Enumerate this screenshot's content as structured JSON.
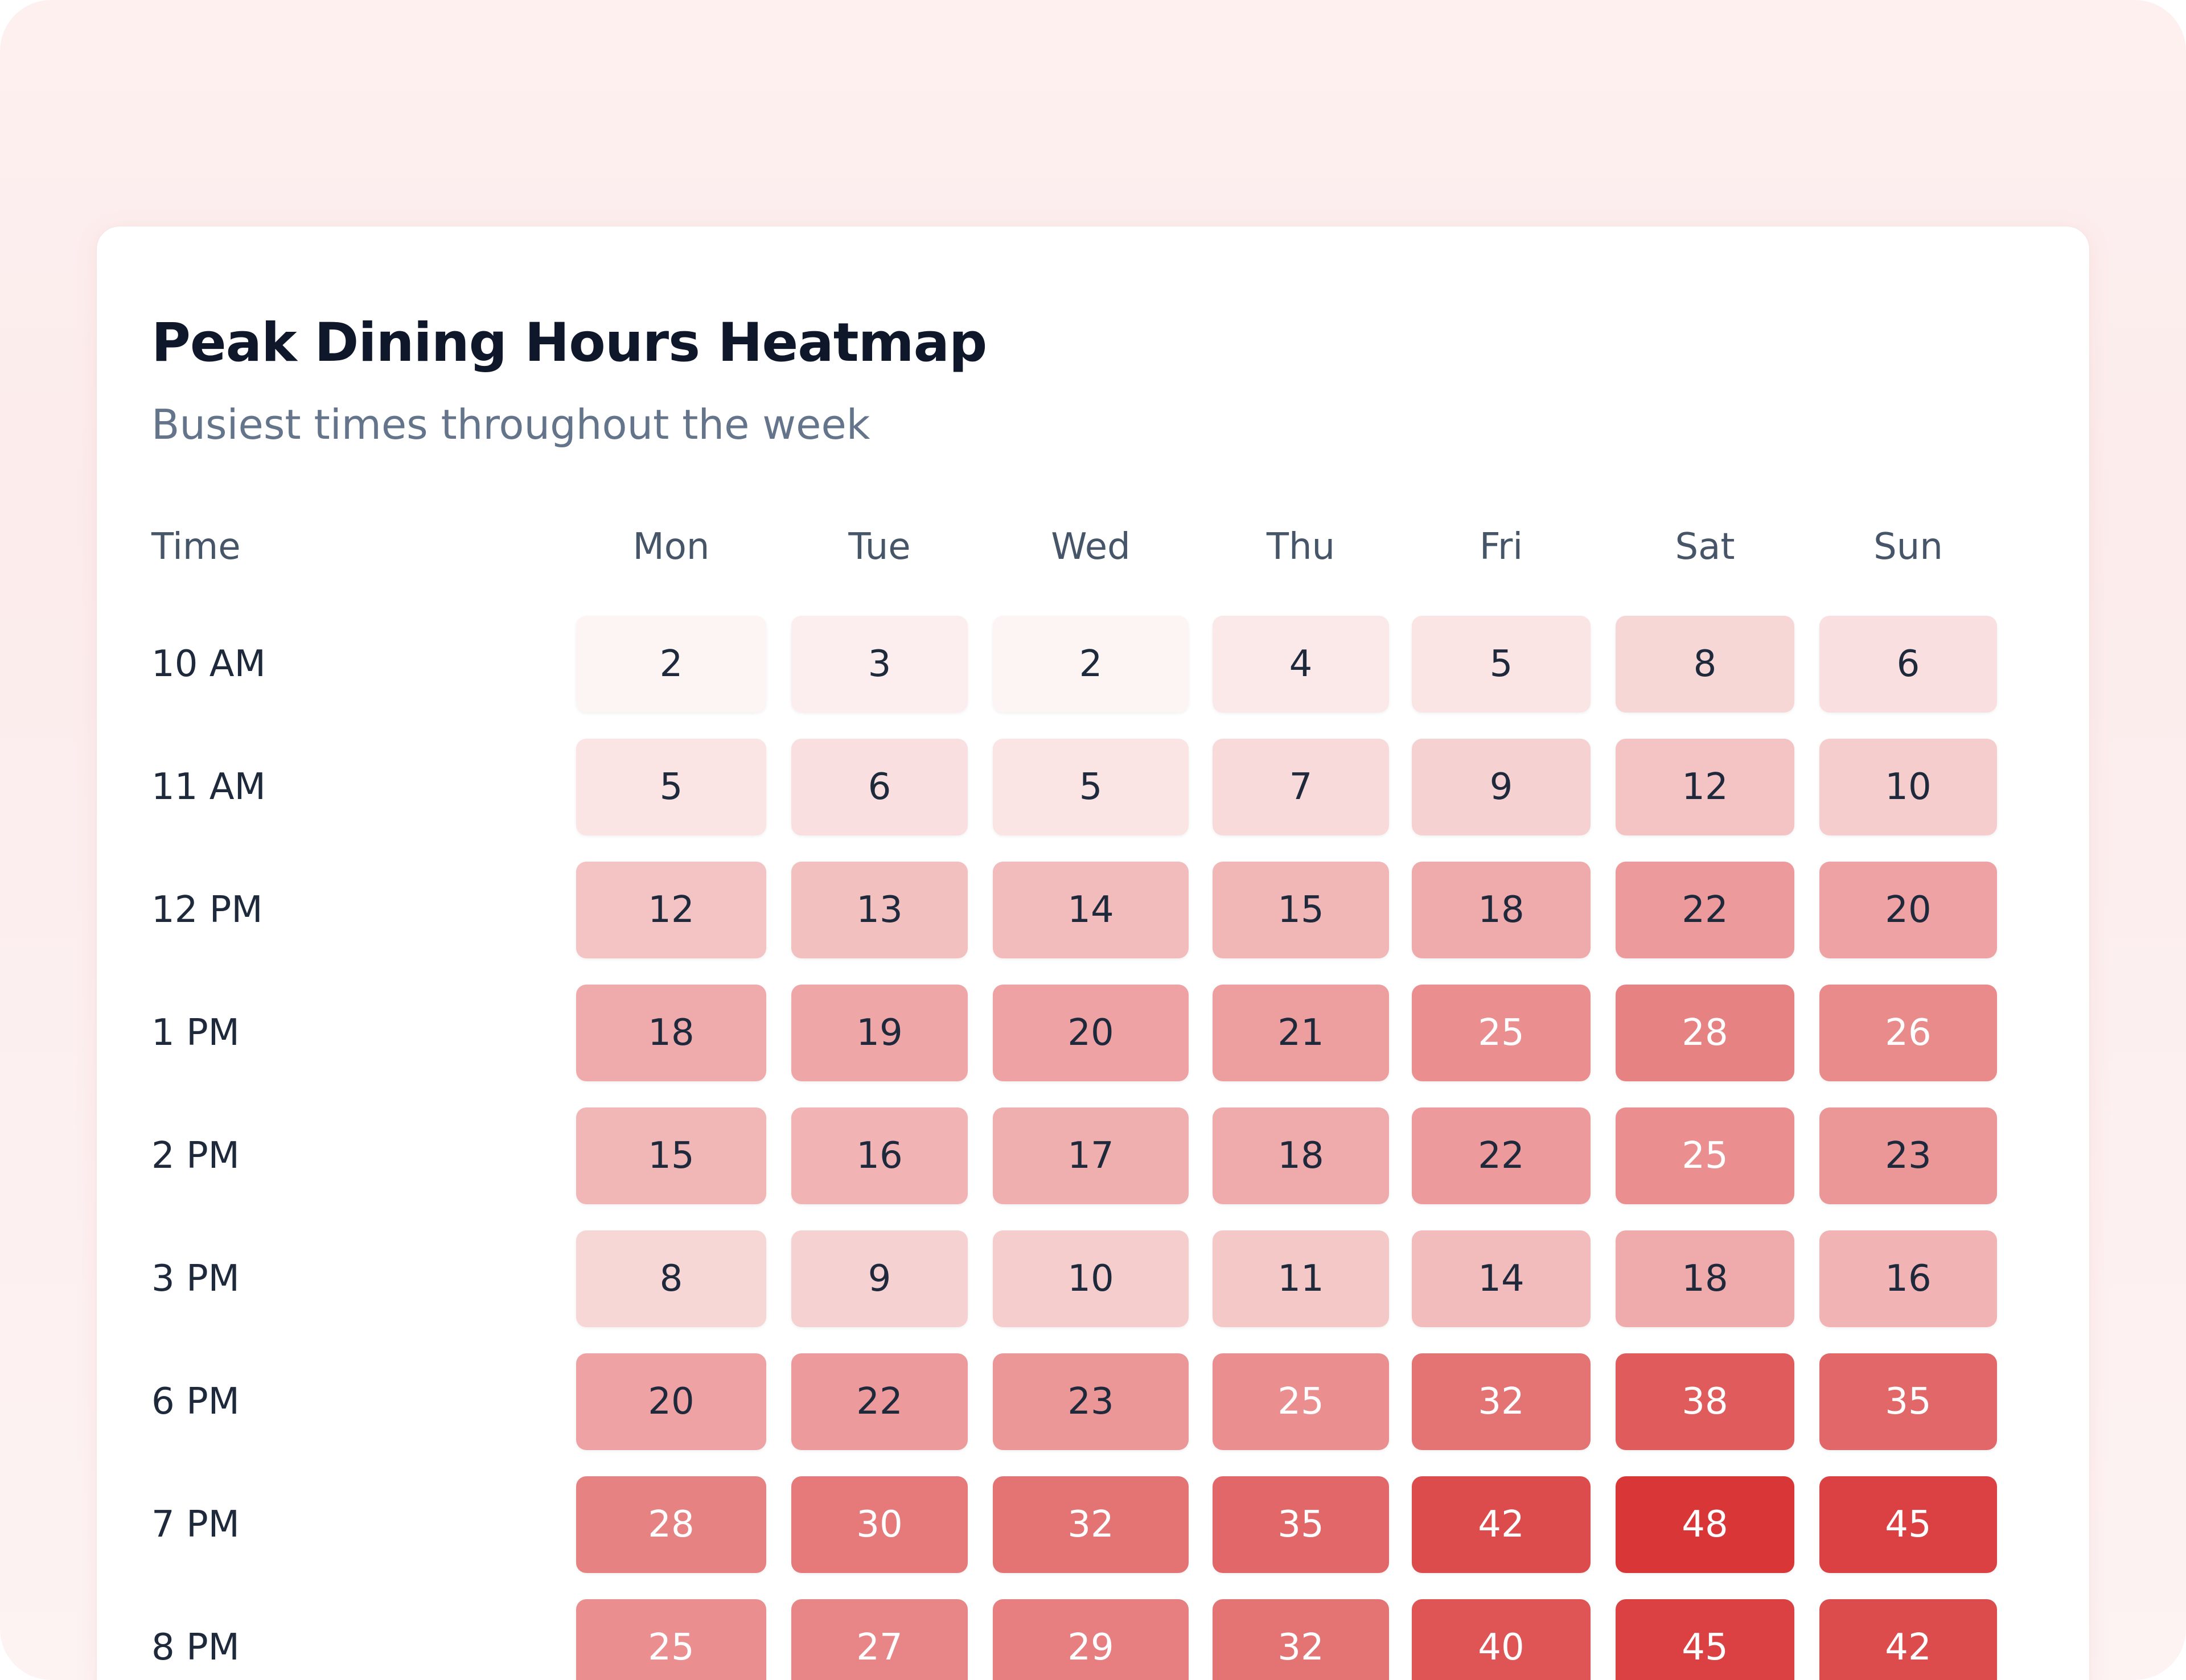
{
  "chart_data": {
    "type": "heatmap",
    "title": "Peak Dining Hours Heatmap",
    "subtitle": "Busiest times throughout the week",
    "row_header": "Time",
    "columns": [
      "Mon",
      "Tue",
      "Wed",
      "Thu",
      "Fri",
      "Sat",
      "Sun"
    ],
    "rows": [
      "10 AM",
      "11 AM",
      "12 PM",
      "1 PM",
      "2 PM",
      "3 PM",
      "6 PM",
      "7 PM",
      "8 PM"
    ],
    "values": [
      [
        2,
        3,
        2,
        4,
        5,
        8,
        6
      ],
      [
        5,
        6,
        5,
        7,
        9,
        12,
        10
      ],
      [
        12,
        13,
        14,
        15,
        18,
        22,
        20
      ],
      [
        18,
        19,
        20,
        21,
        25,
        28,
        26
      ],
      [
        15,
        16,
        17,
        18,
        22,
        25,
        23
      ],
      [
        8,
        9,
        10,
        11,
        14,
        18,
        16
      ],
      [
        20,
        22,
        23,
        25,
        32,
        38,
        35
      ],
      [
        28,
        30,
        32,
        35,
        42,
        48,
        45
      ],
      [
        25,
        27,
        29,
        32,
        40,
        45,
        42
      ]
    ],
    "color_low": "#fdf4f4",
    "color_high": "#d93637",
    "text_dark": "#1e293b",
    "text_light": "#ffffff"
  }
}
